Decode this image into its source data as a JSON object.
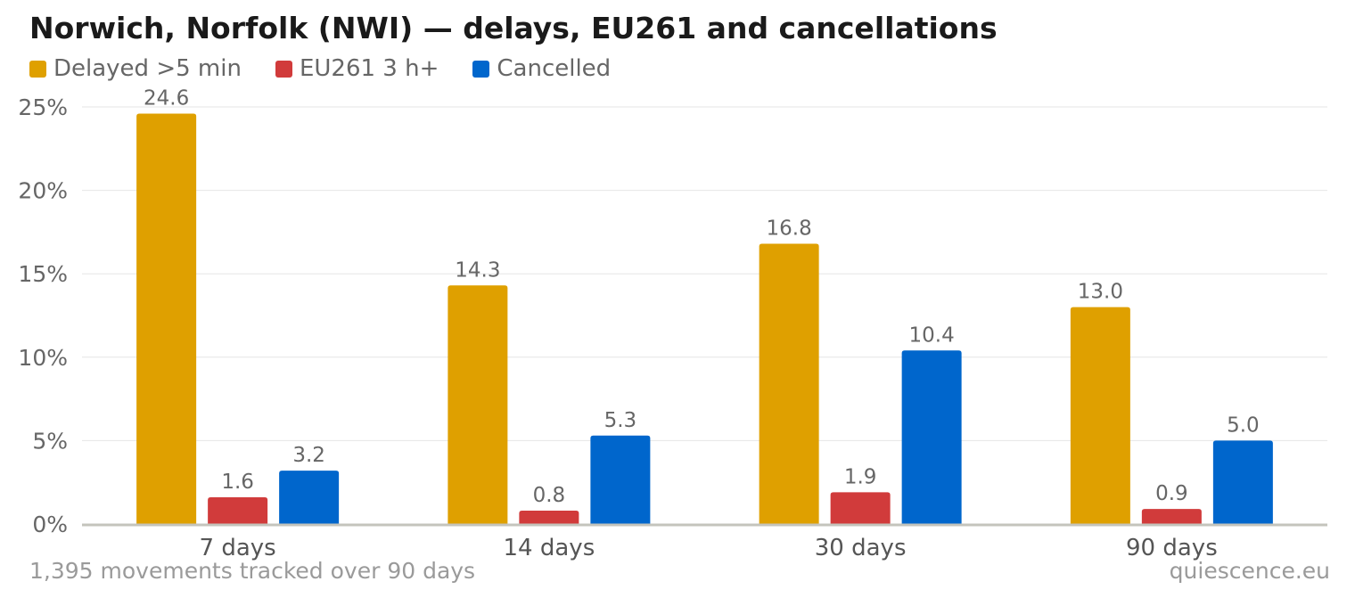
{
  "title": "Norwich, Norfolk (NWI) — delays, EU261 and cancellations",
  "footnote": "1,395 movements tracked over 90 days",
  "source": "quiescence.eu",
  "chart_data": {
    "type": "bar",
    "title": "Norwich, Norfolk (NWI) — delays, EU261 and cancellations",
    "xlabel": "",
    "ylabel": "",
    "ylim": [
      0,
      25
    ],
    "yticks": [
      0,
      5,
      10,
      15,
      20,
      25
    ],
    "ytick_labels": [
      "0%",
      "5%",
      "10%",
      "15%",
      "20%",
      "25%"
    ],
    "grid": true,
    "legend_placement": "top-left",
    "categories": [
      "7 days",
      "14 days",
      "30 days",
      "90 days"
    ],
    "series": [
      {
        "name": "Delayed >5 min",
        "color": "#dfa000",
        "values": [
          24.6,
          14.3,
          16.8,
          13.0
        ],
        "labels": [
          "24.6",
          "14.3",
          "16.8",
          "13.0"
        ]
      },
      {
        "name": "EU261 3 h+",
        "color": "#d13b3b",
        "values": [
          1.6,
          0.8,
          1.9,
          0.9
        ],
        "labels": [
          "1.6",
          "0.8",
          "1.9",
          "0.9"
        ]
      },
      {
        "name": "Cancelled",
        "color": "#0066cc",
        "values": [
          3.2,
          5.3,
          10.4,
          5.0
        ],
        "labels": [
          "3.2",
          "5.3",
          "10.4",
          "5.0"
        ]
      }
    ]
  }
}
